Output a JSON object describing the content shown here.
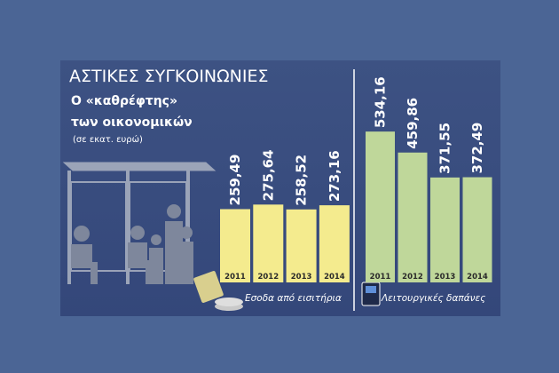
{
  "header": {
    "title": "ΑΣΤΙΚΕΣ ΣΥΓΚΟΙΝΩΝΙΕΣ",
    "subtitle_line1": "Ο «καθρέφτης»",
    "subtitle_line2": "των οικονομικών",
    "unit": "(σε εκατ. ευρώ)"
  },
  "chart_data": [
    {
      "type": "bar",
      "caption": "Εσοδα από εισιτήρια",
      "color": "#f4eb8e",
      "categories": [
        "2011",
        "2012",
        "2013",
        "2014"
      ],
      "values": [
        259.49,
        275.64,
        258.52,
        273.16
      ],
      "value_labels": [
        "259,49",
        "275,64",
        "258,52",
        "273,16"
      ]
    },
    {
      "type": "bar",
      "caption": "Λειτουργικές δαπάνες",
      "color": "#bfd79a",
      "categories": [
        "2011",
        "2012",
        "2013",
        "2014"
      ],
      "values": [
        534.16,
        459.86,
        371.55,
        372.49
      ],
      "value_labels": [
        "534,16",
        "459,86",
        "371,55",
        "372,49"
      ]
    }
  ]
}
